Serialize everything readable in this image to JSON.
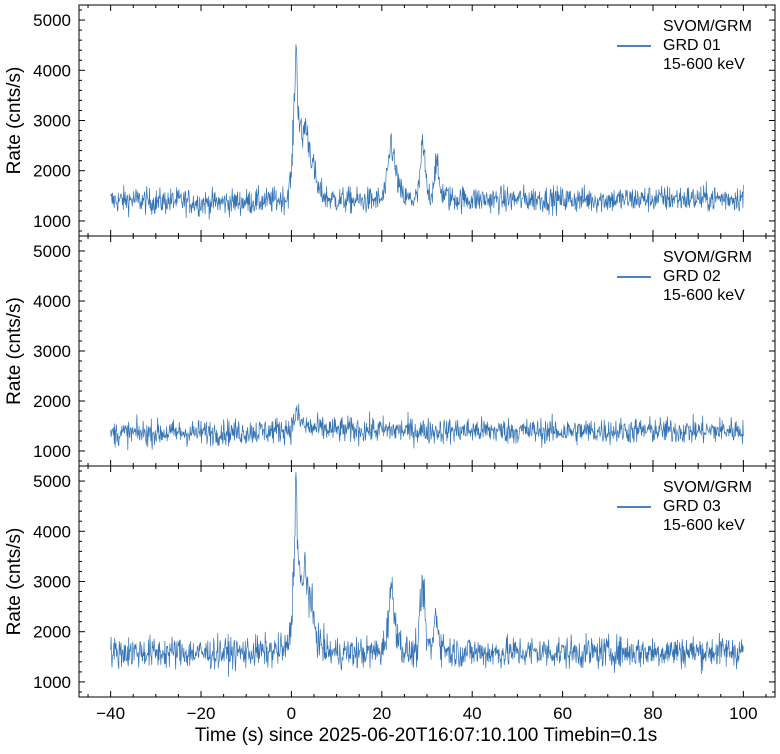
{
  "figure": {
    "xlabel": "Time (s) since 2025-06-20T16:07:10.100 Timebin=0.1s"
  },
  "colors": {
    "series": "#0f5aa7",
    "axis": "#000000",
    "background": "#ffffff"
  },
  "chart_data": [
    {
      "type": "line",
      "ylabel": "Rate (cnts/s)",
      "xlim": [
        -47,
        107
      ],
      "ylim": [
        700,
        5300
      ],
      "legend_position": "top-right",
      "legend": [
        "SVOM/GRM",
        "GRD 01",
        "15-600 keV"
      ],
      "yticks": [
        1000,
        2000,
        3000,
        4000,
        5000
      ],
      "grid": false,
      "series": [
        {
          "name": "GRD 01",
          "color": "#0f5aa7",
          "x": [
            -40,
            -35,
            -30,
            -25,
            -20,
            -15,
            -10,
            -5,
            -1,
            0,
            0.5,
            1,
            1.5,
            2,
            2.5,
            3,
            3.5,
            4,
            5,
            6,
            8,
            10,
            15,
            20,
            21,
            22,
            22.5,
            23,
            24,
            25,
            27,
            28,
            29,
            29.5,
            30,
            31,
            32,
            33,
            35,
            40,
            45,
            50,
            55,
            60,
            65,
            70,
            75,
            80,
            85,
            90,
            95,
            100
          ],
          "y": [
            1400,
            1420,
            1380,
            1400,
            1360,
            1370,
            1380,
            1400,
            1450,
            1900,
            3000,
            4550,
            3300,
            2800,
            2600,
            3000,
            2700,
            2500,
            2000,
            1600,
            1450,
            1420,
            1400,
            1420,
            1700,
            2600,
            2400,
            2000,
            1600,
            1450,
            1420,
            1500,
            2500,
            2200,
            1600,
            1500,
            2200,
            1600,
            1450,
            1430,
            1420,
            1430,
            1440,
            1420,
            1430,
            1420,
            1430,
            1440,
            1450,
            1440,
            1450,
            1460
          ],
          "noise": 130
        }
      ]
    },
    {
      "type": "line",
      "ylabel": "Rate (cnts/s)",
      "xlim": [
        -47,
        107
      ],
      "ylim": [
        700,
        5300
      ],
      "legend_position": "top-right",
      "legend": [
        "SVOM/GRM",
        "GRD 02",
        "15-600 keV"
      ],
      "yticks": [
        1000,
        2000,
        3000,
        4000,
        5000
      ],
      "grid": false,
      "series": [
        {
          "name": "GRD 02",
          "color": "#0f5aa7",
          "x": [
            -40,
            -30,
            -20,
            -10,
            -5,
            0,
            1,
            2,
            3,
            5,
            10,
            20,
            30,
            40,
            50,
            60,
            70,
            80,
            90,
            100
          ],
          "y": [
            1350,
            1360,
            1370,
            1380,
            1400,
            1450,
            1750,
            1600,
            1500,
            1450,
            1420,
            1420,
            1400,
            1410,
            1400,
            1390,
            1400,
            1410,
            1400,
            1420
          ],
          "noise": 130
        }
      ]
    },
    {
      "type": "line",
      "ylabel": "Rate (cnts/s)",
      "xlim": [
        -47,
        107
      ],
      "ylim": [
        700,
        5300
      ],
      "legend_position": "top-right",
      "legend": [
        "SVOM/GRM",
        "GRD 03",
        "15-600 keV"
      ],
      "yticks": [
        1000,
        2000,
        3000,
        4000,
        5000
      ],
      "grid": false,
      "series": [
        {
          "name": "GRD 03",
          "color": "#0f5aa7",
          "x": [
            -40,
            -35,
            -30,
            -25,
            -20,
            -15,
            -10,
            -5,
            -1,
            0,
            0.5,
            1,
            1.5,
            2,
            2.5,
            3,
            3.5,
            4,
            5,
            6,
            8,
            10,
            15,
            20,
            21,
            22,
            22.5,
            23,
            24,
            25,
            27,
            28,
            29,
            29.5,
            30,
            31,
            32,
            33,
            35,
            40,
            45,
            50,
            55,
            60,
            65,
            70,
            75,
            80,
            85,
            90,
            95,
            100
          ],
          "y": [
            1580,
            1600,
            1580,
            1590,
            1570,
            1580,
            1590,
            1600,
            1650,
            2100,
            3300,
            5000,
            3600,
            3000,
            2800,
            3400,
            3000,
            2700,
            2200,
            1800,
            1600,
            1580,
            1580,
            1600,
            1900,
            2900,
            2600,
            2200,
            1800,
            1600,
            1580,
            1700,
            3000,
            2400,
            1800,
            1650,
            2400,
            1750,
            1600,
            1590,
            1580,
            1590,
            1600,
            1590,
            1580,
            1590,
            1600,
            1600,
            1610,
            1600,
            1610,
            1620
          ],
          "noise": 150
        }
      ]
    }
  ],
  "xticks": [
    -40,
    -20,
    0,
    20,
    40,
    60,
    80,
    100
  ]
}
